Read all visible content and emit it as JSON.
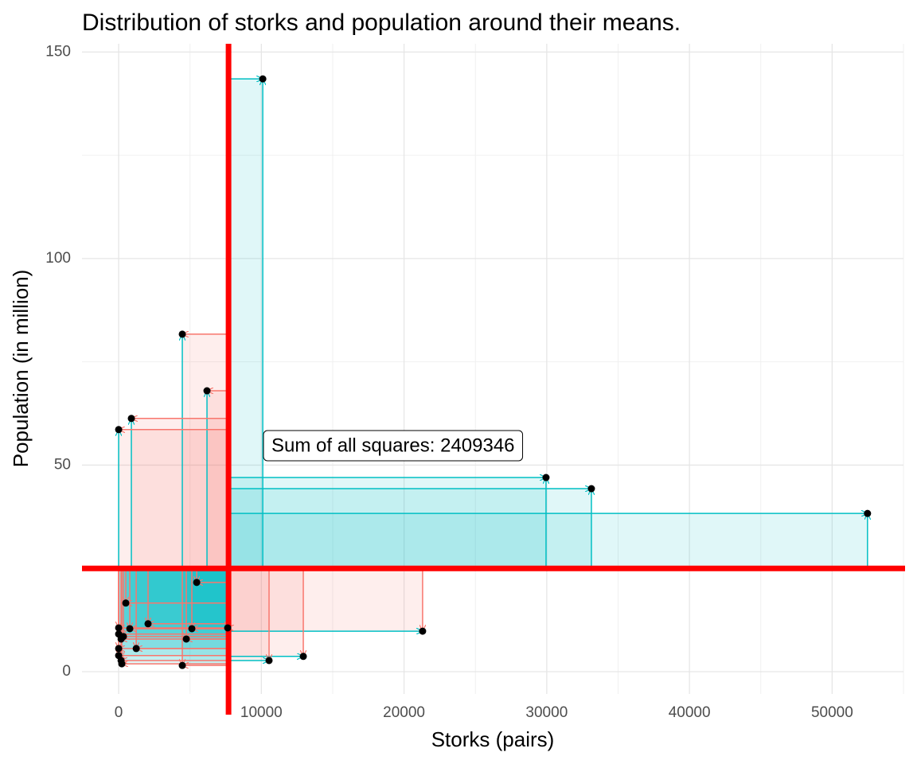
{
  "chart_data": {
    "type": "scatter",
    "title": "Distribution of storks and population around their means.",
    "x_label": "Storks (pairs)",
    "y_label": "Population (in million)",
    "x": [
      10100,
      4460,
      6190,
      890,
      0,
      29950,
      33130,
      52480,
      5470,
      500,
      21300,
      2060,
      780,
      5130,
      7640,
      0,
      0,
      330,
      170,
      4740,
      1230,
      0,
      0,
      12940,
      10540,
      4460,
      170,
      220
    ],
    "values": [
      143.5,
      81.7,
      68.0,
      61.3,
      58.6,
      47.0,
      44.3,
      38.3,
      21.6,
      16.6,
      9.8,
      11.6,
      10.4,
      10.4,
      10.6,
      10.6,
      9.1,
      8.5,
      7.9,
      7.9,
      5.6,
      5.6,
      3.9,
      3.7,
      2.7,
      1.5,
      2.7,
      1.9
    ],
    "point_color": "#000000",
    "positive_color": "#00BFC4",
    "negative_color": "#F8766D",
    "x_mean": 7700,
    "y_mean": 25,
    "mean_color": "#FF0000",
    "annotation": "Sum of all squares: 2409346",
    "xlim": [
      -2570,
      55000
    ],
    "ylim": [
      -5.4,
      152
    ],
    "xticks": [
      0,
      10000,
      20000,
      30000,
      40000,
      50000
    ],
    "yticks": [
      0,
      50,
      100,
      150
    ],
    "minor_xticks": [
      5000,
      15000,
      25000,
      35000,
      45000,
      55000
    ],
    "minor_yticks": [
      25,
      75,
      125
    ],
    "grid": true
  }
}
